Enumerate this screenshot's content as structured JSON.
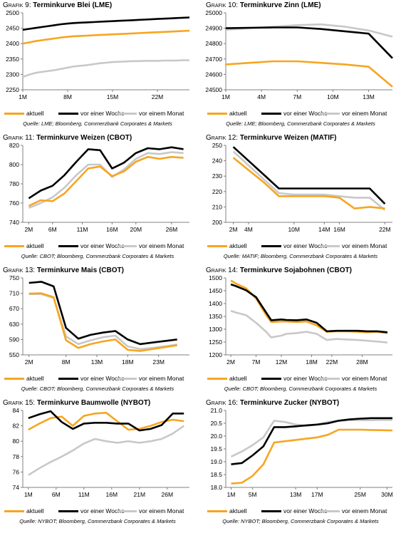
{
  "colors": {
    "aktuell": "#F7A521",
    "woche": "#000000",
    "monat": "#C8C8C8",
    "axis": "#808080"
  },
  "legend": {
    "aktuell": "aktuell",
    "woche": "vor einer Woche",
    "monat": "vor einem Monat"
  },
  "charts": [
    {
      "label": "Grafik 9:",
      "title": "Terminkurve Blei (LME)",
      "source": "Quelle: LME; Bloomberg, Commerzbank Corporates & Markets"
    },
    {
      "label": "Grafik 10:",
      "title": "Terminkurve Zinn (LME)",
      "source": "Quelle: LME; Bloomberg, Commerzbank Corporates & Markets"
    },
    {
      "label": "Grafik 11:",
      "title": "Terminkurve Weizen (CBOT)",
      "source": "Quelle: CBOT; Bloomberg, Commerzbank Corporates & Markets"
    },
    {
      "label": "Grafik 12:",
      "title": "Terminkurve Weizen (MATIF)",
      "source": "Quelle: MATIF; Bloomberg, Commerzbank Corporates & Markets"
    },
    {
      "label": "Grafik 13:",
      "title": "Terminkurve Mais (CBOT)",
      "source": "Quelle: CBOT; Bloomberg, Commerzbank Corporates & Markets"
    },
    {
      "label": "Grafik 14:",
      "title": "Terminkurve Sojabohnen (CBOT)",
      "source": "Quelle: CBOT; Bloomberg, Commerzbank Corporates & Markets"
    },
    {
      "label": "Grafik 15:",
      "title": "Terminkurve Baumwolle (NYBOT)",
      "source": "Quelle: NYBOT; Bloomberg, Commerzbank Corporates & Markets"
    },
    {
      "label": "Grafik 16:",
      "title": "Terminkurve Zucker (NYBOT)",
      "source": "Quelle: NYBOT; Bloomberg, Commerzbank Corporates & Markets"
    }
  ],
  "chart_data": [
    {
      "type": "line",
      "title": "Terminkurve Blei (LME)",
      "x": [
        1,
        2,
        3,
        4,
        5,
        6,
        7,
        8,
        9,
        10,
        11,
        12,
        13,
        14,
        15,
        16,
        17,
        18,
        19,
        20,
        21,
        22,
        23,
        24,
        25,
        26,
        27
      ],
      "x_ticks": [
        1,
        8,
        15,
        22
      ],
      "x_tick_labels": [
        "1M",
        "8M",
        "15M",
        "22M"
      ],
      "xlim": [
        1,
        27
      ],
      "ylim": [
        2250,
        2500
      ],
      "y_ticks": [
        2250,
        2300,
        2350,
        2400,
        2450,
        2500
      ],
      "series": [
        {
          "name": "aktuell",
          "values": [
            2400,
            2404,
            2408,
            2411,
            2414,
            2417,
            2420,
            2422,
            2424,
            2425,
            2426,
            2427,
            2428,
            2429,
            2430,
            2431,
            2432,
            2433,
            2434,
            2435,
            2436,
            2437,
            2438,
            2439,
            2440,
            2441,
            2442
          ]
        },
        {
          "name": "vor einer Woche",
          "values": [
            2445,
            2448,
            2451,
            2454,
            2457,
            2460,
            2463,
            2465,
            2467,
            2468,
            2469,
            2470,
            2471,
            2472,
            2473,
            2474,
            2475,
            2476,
            2477,
            2478,
            2479,
            2480,
            2481,
            2482,
            2483,
            2484,
            2485
          ]
        },
        {
          "name": "vor einem Monat",
          "values": [
            2292,
            2299,
            2305,
            2308,
            2311,
            2314,
            2318,
            2322,
            2326,
            2328,
            2330,
            2333,
            2336,
            2338,
            2340,
            2341,
            2342,
            2343,
            2343,
            2344,
            2344,
            2344,
            2345,
            2345,
            2345,
            2346,
            2346
          ]
        }
      ]
    },
    {
      "type": "line",
      "title": "Terminkurve Zinn (LME)",
      "x": [
        1,
        3,
        5,
        7,
        9,
        11,
        13,
        15
      ],
      "x_ticks": [
        1,
        4,
        7,
        10,
        13
      ],
      "x_tick_labels": [
        "1M",
        "4M",
        "7M",
        "10M",
        "13M"
      ],
      "xlim": [
        1,
        15
      ],
      "ylim": [
        24500,
        25000
      ],
      "y_ticks": [
        24500,
        24600,
        24700,
        24800,
        24900,
        25000
      ],
      "series": [
        {
          "name": "aktuell",
          "values": [
            24665,
            24675,
            24685,
            24685,
            24675,
            24665,
            24650,
            24520
          ]
        },
        {
          "name": "vor einer Woche",
          "values": [
            24900,
            24903,
            24905,
            24905,
            24895,
            24880,
            24865,
            24705
          ]
        },
        {
          "name": "vor einem Monat",
          "values": [
            24890,
            24900,
            24910,
            24920,
            24925,
            24910,
            24885,
            24845
          ]
        }
      ]
    },
    {
      "type": "line",
      "title": "Terminkurve Weizen (CBOT)",
      "x": [
        2,
        4,
        6,
        8,
        10,
        12,
        14,
        16,
        18,
        20,
        22,
        24,
        26,
        28
      ],
      "x_ticks": [
        2,
        6,
        11,
        16,
        20,
        26
      ],
      "x_tick_labels": [
        "2M",
        "6M",
        "11M",
        "16M",
        "20M",
        "26M"
      ],
      "xlim": [
        1,
        29
      ],
      "ylim": [
        740,
        820
      ],
      "y_ticks": [
        740,
        760,
        780,
        800,
        820
      ],
      "series": [
        {
          "name": "aktuell",
          "values": [
            757,
            763,
            762,
            770,
            783,
            796,
            798,
            788,
            793,
            803,
            808,
            806,
            808,
            807
          ]
        },
        {
          "name": "vor einer Woche",
          "values": [
            765,
            773,
            778,
            789,
            803,
            816,
            815,
            796,
            802,
            812,
            817,
            816,
            818,
            816
          ]
        },
        {
          "name": "vor einem Monat",
          "values": [
            755,
            760,
            766,
            776,
            789,
            800,
            800,
            787,
            795,
            806,
            812,
            811,
            813,
            812
          ]
        }
      ]
    },
    {
      "type": "line",
      "title": "Terminkurve Weizen (MATIF)",
      "x": [
        2,
        4,
        6,
        8,
        10,
        12,
        14,
        16,
        18,
        20,
        22
      ],
      "x_ticks": [
        2,
        4,
        10,
        14,
        16,
        22
      ],
      "x_tick_labels": [
        "2M",
        "4M",
        "10M",
        "14M",
        "16M",
        "22M"
      ],
      "xlim": [
        1,
        23
      ],
      "ylim": [
        200,
        250
      ],
      "y_ticks": [
        200,
        210,
        220,
        230,
        240,
        250
      ],
      "series": [
        {
          "name": "aktuell",
          "values": [
            242,
            234,
            226,
            217,
            217,
            217,
            217,
            216,
            209,
            210,
            209
          ]
        },
        {
          "name": "vor einer Woche",
          "values": [
            249,
            240,
            231,
            222,
            222,
            222,
            222,
            222,
            222,
            222,
            212
          ]
        },
        {
          "name": "vor einem Monat",
          "values": [
            246,
            237,
            228,
            219,
            218,
            218,
            218,
            217,
            216,
            216,
            208
          ]
        }
      ]
    },
    {
      "type": "line",
      "title": "Terminkurve Mais (CBOT)",
      "x": [
        2,
        4,
        6,
        8,
        10,
        12,
        14,
        16,
        18,
        20,
        22,
        24,
        26
      ],
      "x_ticks": [
        2,
        8,
        13,
        18,
        23
      ],
      "x_tick_labels": [
        "2M",
        "8M",
        "13M",
        "18M",
        "23M"
      ],
      "xlim": [
        1,
        28
      ],
      "ylim": [
        550,
        750
      ],
      "y_ticks": [
        550,
        590,
        630,
        670,
        710,
        750
      ],
      "series": [
        {
          "name": "aktuell",
          "values": [
            709,
            710,
            700,
            588,
            568,
            578,
            585,
            590,
            563,
            560,
            565,
            570,
            575
          ]
        },
        {
          "name": "vor einer Woche",
          "values": [
            737,
            740,
            728,
            620,
            592,
            602,
            608,
            612,
            590,
            578,
            582,
            586,
            590
          ]
        },
        {
          "name": "vor einem Monat",
          "values": [
            708,
            708,
            698,
            598,
            578,
            588,
            596,
            600,
            572,
            565,
            568,
            572,
            577
          ]
        }
      ]
    },
    {
      "type": "line",
      "title": "Terminkurve Sojabohnen (CBOT)",
      "x": [
        2,
        3,
        5,
        7,
        9,
        10,
        12,
        13,
        15,
        17,
        19,
        21,
        23,
        25,
        27,
        29,
        31,
        33
      ],
      "x_ticks": [
        2,
        7,
        12,
        18,
        22,
        28
      ],
      "x_tick_labels": [
        "2M",
        "7M",
        "12M",
        "18M",
        "22M",
        "28M"
      ],
      "xlim": [
        1,
        34
      ],
      "ylim": [
        1200,
        1500
      ],
      "y_ticks": [
        1200,
        1250,
        1300,
        1350,
        1400,
        1450,
        1500
      ],
      "series": [
        {
          "name": "aktuell",
          "values": [
            1490,
            1478,
            1460,
            1420,
            1355,
            1328,
            1330,
            1330,
            1328,
            1330,
            1315,
            1290,
            1292,
            1292,
            1290,
            1288,
            1290,
            1285
          ]
        },
        {
          "name": "vor einer Woche",
          "values": [
            1475,
            1468,
            1452,
            1425,
            1365,
            1335,
            1338,
            1336,
            1335,
            1338,
            1325,
            1292,
            1294,
            1294,
            1294,
            1292,
            1292,
            1288
          ]
        },
        {
          "name": "vor einem Monat",
          "values": [
            1372,
            1365,
            1355,
            1325,
            1290,
            1268,
            1275,
            1282,
            1285,
            1290,
            1282,
            1258,
            1262,
            1260,
            1258,
            1255,
            1252,
            1248
          ]
        }
      ]
    },
    {
      "type": "line",
      "title": "Terminkurve Baumwolle (NYBOT)",
      "x": [
        1,
        3,
        5,
        7,
        9,
        11,
        13,
        15,
        17,
        19,
        21,
        23,
        25,
        27,
        29
      ],
      "x_ticks": [
        1,
        6,
        11,
        16,
        21,
        26
      ],
      "x_tick_labels": [
        "1M",
        "6M",
        "11M",
        "16M",
        "21M",
        "26M"
      ],
      "xlim": [
        0,
        30
      ],
      "ylim": [
        74,
        84
      ],
      "y_ticks": [
        74,
        76,
        78,
        80,
        82,
        84
      ],
      "series": [
        {
          "name": "aktuell",
          "values": [
            81.5,
            82.3,
            83.0,
            83.2,
            82.0,
            83.3,
            83.6,
            83.7,
            82.6,
            81.5,
            81.6,
            82.0,
            82.5,
            82.8,
            82.6
          ]
        },
        {
          "name": "vor einer Woche",
          "values": [
            83.0,
            83.5,
            83.9,
            82.5,
            81.6,
            82.3,
            82.4,
            82.4,
            82.3,
            82.3,
            81.4,
            81.6,
            82.1,
            83.6,
            83.6
          ]
        },
        {
          "name": "vor einem Monat",
          "values": [
            75.6,
            76.5,
            77.3,
            78.0,
            78.8,
            79.7,
            80.3,
            80.0,
            79.8,
            80.0,
            79.8,
            80.0,
            80.3,
            81.0,
            82.0
          ]
        }
      ]
    },
    {
      "type": "line",
      "title": "Terminkurve Zucker (NYBOT)",
      "x": [
        1,
        3,
        5,
        7,
        9,
        11,
        13,
        15,
        17,
        19,
        21,
        23,
        25,
        27,
        29,
        31
      ],
      "x_ticks": [
        1,
        5,
        13,
        17,
        25,
        30
      ],
      "x_tick_labels": [
        "1M",
        "5M",
        "13M",
        "17M",
        "25M",
        "30M"
      ],
      "xlim": [
        0,
        31
      ],
      "ylim": [
        18.0,
        21.0
      ],
      "y_ticks": [
        18.0,
        18.5,
        19.0,
        19.5,
        20.0,
        20.5,
        21.0
      ],
      "series": [
        {
          "name": "aktuell",
          "values": [
            18.15,
            18.18,
            18.45,
            18.9,
            19.75,
            19.8,
            19.85,
            19.9,
            19.95,
            20.05,
            20.25,
            20.25,
            20.25,
            20.24,
            20.23,
            20.22
          ]
        },
        {
          "name": "vor einer Woche",
          "values": [
            18.9,
            18.95,
            19.25,
            19.6,
            20.35,
            20.35,
            20.38,
            20.42,
            20.45,
            20.5,
            20.6,
            20.65,
            20.68,
            20.7,
            20.7,
            20.7
          ]
        },
        {
          "name": "vor einem Monat",
          "values": [
            19.2,
            19.4,
            19.65,
            19.95,
            20.6,
            20.55,
            20.45,
            20.4,
            20.45,
            20.55,
            20.6,
            20.62,
            20.62,
            20.62,
            20.63,
            20.63
          ]
        }
      ]
    }
  ]
}
